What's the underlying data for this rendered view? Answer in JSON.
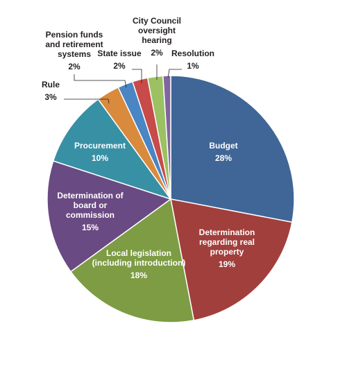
{
  "chart_data": {
    "type": "pie",
    "title": "",
    "legend": "none",
    "slices": [
      {
        "label": "Budget",
        "percent_label": "28%",
        "value": 28,
        "color": "#3f6696"
      },
      {
        "label": "Determination regarding real property",
        "percent_label": "19%",
        "value": 19,
        "color": "#a13f3c"
      },
      {
        "label": "Local legislation (including introduction)",
        "percent_label": "18%",
        "value": 18,
        "color": "#7d9c43"
      },
      {
        "label": "Determination of board or commission",
        "percent_label": "15%",
        "value": 15,
        "color": "#6a4a83"
      },
      {
        "label": "Procurement",
        "percent_label": "10%",
        "value": 10,
        "color": "#3890a5"
      },
      {
        "label": "Rule",
        "percent_label": "3%",
        "value": 3,
        "color": "#d98a3c"
      },
      {
        "label": "Pension funds and retirement systems",
        "percent_label": "2%",
        "value": 2,
        "color": "#4a85c4"
      },
      {
        "label": "State issue",
        "percent_label": "2%",
        "value": 2,
        "color": "#c74b48"
      },
      {
        "label": "City Council oversight hearing",
        "percent_label": "2%",
        "value": 2,
        "color": "#9bc163"
      },
      {
        "label": "Resolution",
        "percent_label": "1%",
        "value": 1,
        "color": "#8065a0"
      }
    ]
  }
}
